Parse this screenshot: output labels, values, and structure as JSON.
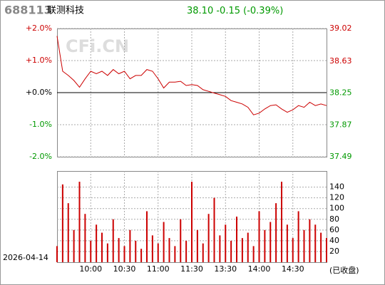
{
  "header": {
    "code": "688113",
    "name": "联测科技",
    "price": "38.10",
    "change": "-0.15",
    "percent": "(-0.39%)",
    "watermark": "CFi.CN",
    "date": "2026-04-14",
    "status": "(已收盘)"
  },
  "chart_data": [
    {
      "type": "line",
      "color": "#cc0000",
      "x": [
        0,
        5,
        10,
        15,
        20,
        25,
        30,
        35,
        40,
        45,
        50,
        55,
        60,
        65,
        70,
        75,
        80,
        85,
        90,
        95,
        100,
        105,
        110,
        115,
        120,
        125,
        130,
        135,
        140,
        145,
        150,
        155,
        160,
        165,
        170,
        175,
        180,
        185,
        190,
        195,
        200,
        205,
        210,
        215,
        220,
        225,
        230,
        235,
        240
      ],
      "values": [
        38.93,
        38.51,
        38.46,
        38.4,
        38.32,
        38.42,
        38.51,
        38.48,
        38.51,
        38.46,
        38.53,
        38.48,
        38.51,
        38.42,
        38.46,
        38.46,
        38.53,
        38.51,
        38.42,
        38.31,
        38.38,
        38.38,
        38.39,
        38.34,
        38.35,
        38.34,
        38.29,
        38.27,
        38.25,
        38.23,
        38.21,
        38.16,
        38.14,
        38.12,
        38.08,
        37.99,
        38.01,
        38.06,
        38.1,
        38.11,
        38.06,
        38.02,
        38.05,
        38.1,
        38.08,
        38.14,
        38.1,
        38.12,
        38.1
      ],
      "xlim": [
        0,
        240
      ],
      "ylim": [
        37.49,
        39.02
      ],
      "yticks": [
        39.02,
        38.63,
        38.25,
        37.87,
        37.49
      ],
      "y2lim": [
        -2,
        2
      ],
      "y2ticks": [
        {
          "value": 2,
          "label": "+2.0%"
        },
        {
          "value": 1,
          "label": "+1.0%"
        },
        {
          "value": 0,
          "label": "+0.0%"
        },
        {
          "value": -1,
          "label": "-1.0%"
        },
        {
          "value": -2,
          "label": "-2.0%"
        }
      ],
      "grid": true
    },
    {
      "type": "bar",
      "color": "#cc0000",
      "x": [
        0,
        5,
        10,
        15,
        20,
        25,
        30,
        35,
        40,
        45,
        50,
        55,
        60,
        65,
        70,
        75,
        80,
        85,
        90,
        95,
        100,
        105,
        110,
        115,
        120,
        125,
        130,
        135,
        140,
        145,
        150,
        155,
        160,
        165,
        170,
        175,
        180,
        185,
        190,
        195,
        200,
        205,
        210,
        215,
        220,
        225,
        230,
        235,
        240
      ],
      "values": [
        30,
        145,
        110,
        60,
        150,
        90,
        40,
        70,
        55,
        35,
        80,
        45,
        30,
        60,
        40,
        25,
        95,
        50,
        35,
        75,
        45,
        30,
        80,
        40,
        150,
        60,
        35,
        90,
        120,
        50,
        70,
        40,
        85,
        45,
        55,
        30,
        95,
        60,
        75,
        110,
        150,
        70,
        45,
        95,
        60,
        80,
        70,
        55,
        45
      ],
      "xlim": [
        0,
        240
      ],
      "xticks": [
        {
          "value": 30,
          "label": "10:00"
        },
        {
          "value": 60,
          "label": "10:30"
        },
        {
          "value": 90,
          "label": "11:00"
        },
        {
          "value": 120,
          "label": "11:30"
        },
        {
          "value": 150,
          "label": "13:30"
        },
        {
          "value": 180,
          "label": "14:00"
        },
        {
          "value": 210,
          "label": "14:30"
        }
      ],
      "ylim": [
        0,
        170
      ],
      "yticks": [
        140,
        120,
        100,
        80,
        60,
        40,
        20
      ],
      "grid": true
    }
  ]
}
